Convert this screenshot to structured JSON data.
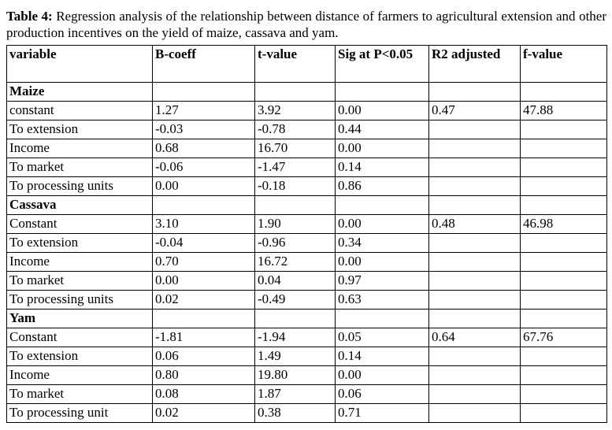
{
  "caption": {
    "label": "Table 4:",
    "text": "Regression analysis of the relationship between distance of farmers to agricultural extension and other production incentives on the yield of maize, cassava and yam."
  },
  "table": {
    "header": [
      "variable",
      "B-coeff",
      "t-value",
      "Sig at P<0.05",
      "R2 adjusted",
      "f-value"
    ],
    "groups": [
      {
        "name": "Maize",
        "r2": "0.47",
        "f": "47.88",
        "rows": [
          [
            "constant",
            "1.27",
            "3.92",
            "0.00"
          ],
          [
            "To extension",
            "-0.03",
            "-0.78",
            "0.44"
          ],
          [
            "Income",
            "0.68",
            "16.70",
            "0.00"
          ],
          [
            "To market",
            "-0.06",
            "-1.47",
            "0.14"
          ],
          [
            "To processing units",
            "0.00",
            "-0.18",
            "0.86"
          ]
        ]
      },
      {
        "name": "Cassava",
        "r2": "0.48",
        "f": "46.98",
        "rows": [
          [
            "Constant",
            "3.10",
            "1.90",
            "0.00"
          ],
          [
            "To extension",
            "-0.04",
            "-0.96",
            "0.34"
          ],
          [
            "Income",
            "0.70",
            "16.72",
            "0.00"
          ],
          [
            "To market",
            "0.00",
            "0.04",
            "0.97"
          ],
          [
            "To processing units",
            "0.02",
            "-0.49",
            "0.63"
          ]
        ]
      },
      {
        "name": "Yam",
        "r2": "0.64",
        "f": "67.76",
        "rows": [
          [
            "Constant",
            "-1.81",
            "-1.94",
            "0.05"
          ],
          [
            "To extension",
            "0.06",
            "1.49",
            "0.14"
          ],
          [
            "Income",
            "0.80",
            "19.80",
            "0.00"
          ],
          [
            "To market",
            "0.08",
            "1.87",
            "0.06"
          ],
          [
            "To processing unit",
            "0.02",
            "0.38",
            "0.71"
          ]
        ]
      }
    ]
  }
}
